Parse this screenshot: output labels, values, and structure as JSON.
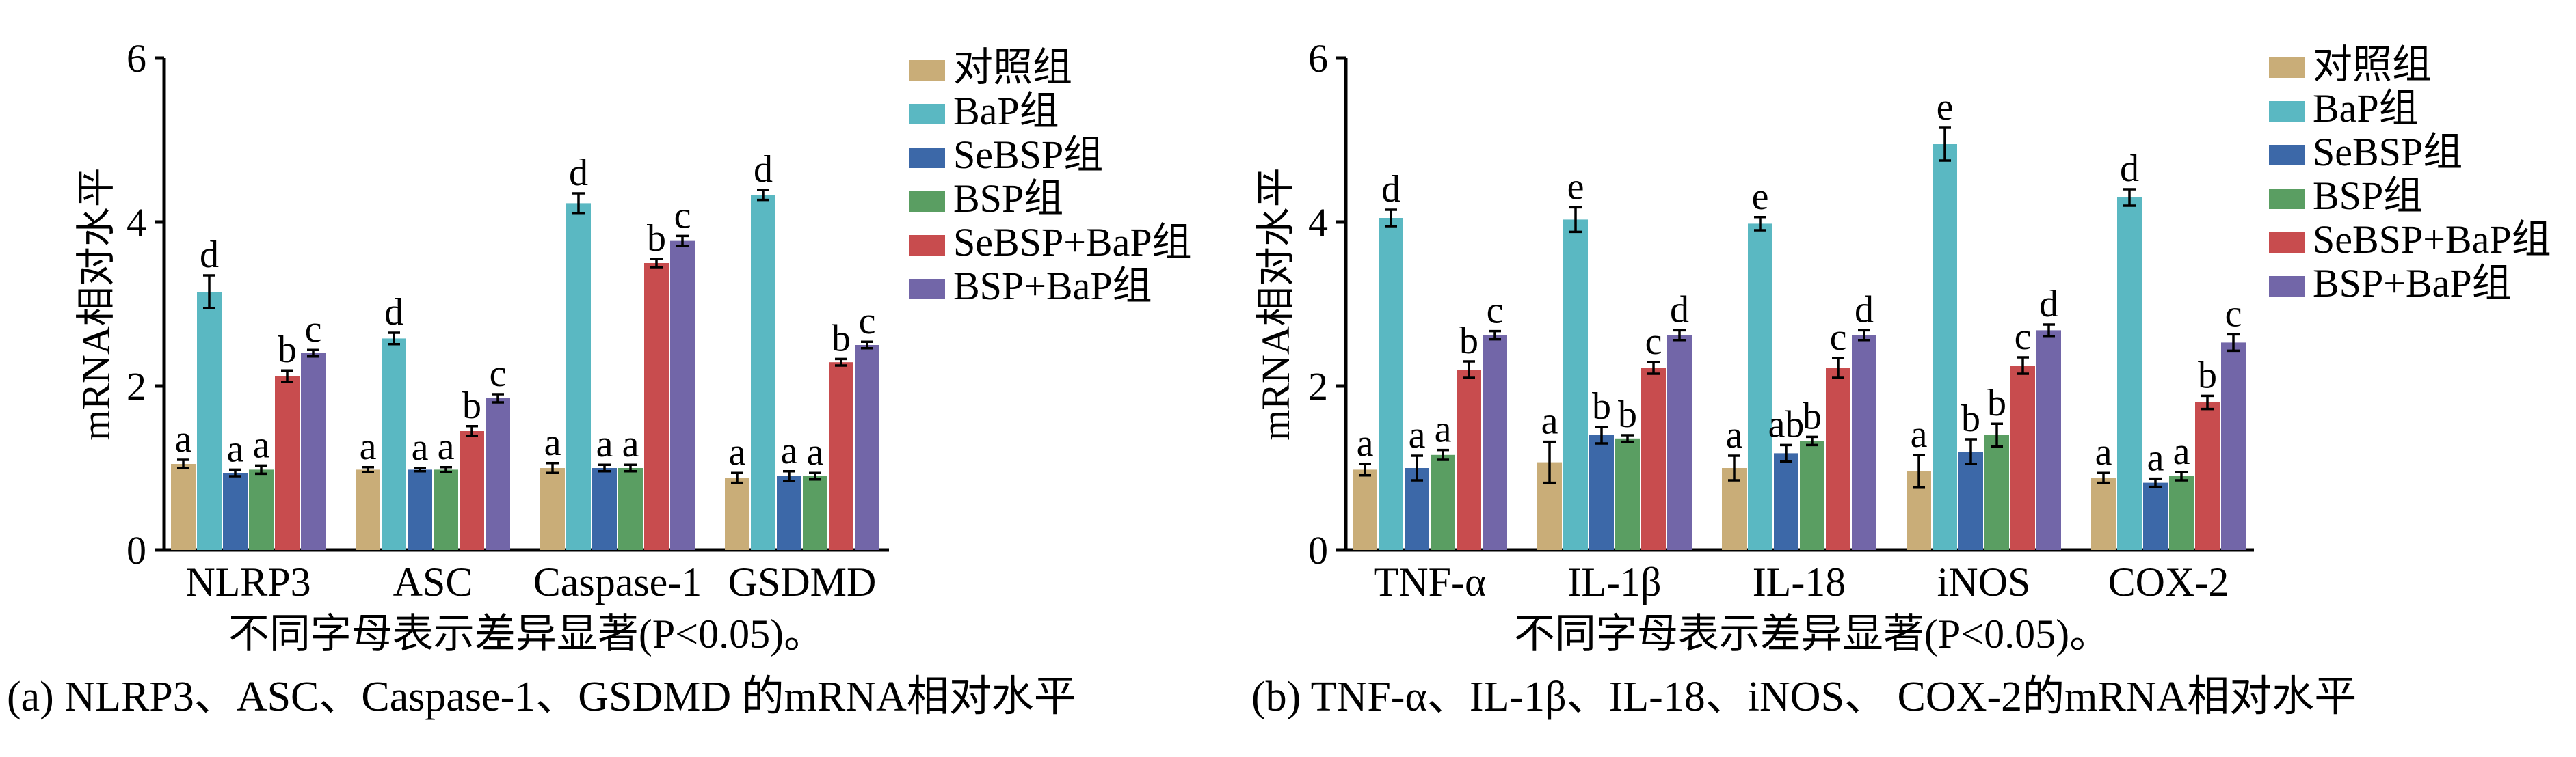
{
  "colors": {
    "对照组": "#c9ad78",
    "BaP组": "#5ab8c2",
    "SeBSP组": "#3c68a8",
    "BSP组": "#5a9e62",
    "SeBSP+BaP组": "#c84c4e",
    "BSP+BaP组": "#7266a8"
  },
  "chart_data": [
    {
      "type": "bar",
      "ylabel": "mRNA相对水平",
      "ylim": [
        0,
        6
      ],
      "yticks": [
        0,
        2,
        4,
        6
      ],
      "note": "不同字母表示差异显著(P<0.05)。",
      "caption": "(a) NLRP3、ASC、Caspase-1、GSDMD 的mRNA相对水平",
      "legend_position": "top-right",
      "categories": [
        "NLRP3",
        "ASC",
        "Caspase-1",
        "GSDMD"
      ],
      "series": [
        {
          "name": "对照组",
          "values": [
            1.05,
            0.98,
            1.0,
            0.88
          ],
          "errors": [
            0.05,
            0.03,
            0.06,
            0.06
          ],
          "labels": [
            "a",
            "a",
            "a",
            "a"
          ]
        },
        {
          "name": "BaP组",
          "values": [
            3.15,
            2.58,
            4.23,
            4.33
          ],
          "errors": [
            0.2,
            0.07,
            0.12,
            0.06
          ],
          "labels": [
            "d",
            "d",
            "d",
            "d"
          ]
        },
        {
          "name": "SeBSP组",
          "values": [
            0.94,
            0.98,
            1.0,
            0.9
          ],
          "errors": [
            0.04,
            0.02,
            0.04,
            0.06
          ],
          "labels": [
            "a",
            "a",
            "a",
            "a"
          ]
        },
        {
          "name": "BSP组",
          "values": [
            0.98,
            0.98,
            1.0,
            0.9
          ],
          "errors": [
            0.05,
            0.03,
            0.04,
            0.04
          ],
          "labels": [
            "a",
            "a",
            "a",
            "a"
          ]
        },
        {
          "name": "SeBSP+BaP组",
          "values": [
            2.12,
            1.45,
            3.5,
            2.29
          ],
          "errors": [
            0.07,
            0.06,
            0.05,
            0.04
          ],
          "labels": [
            "b",
            "b",
            "b",
            "b"
          ]
        },
        {
          "name": "BSP+BaP组",
          "values": [
            2.4,
            1.85,
            3.77,
            2.5
          ],
          "errors": [
            0.04,
            0.05,
            0.06,
            0.04
          ],
          "labels": [
            "c",
            "c",
            "c",
            "c"
          ]
        }
      ]
    },
    {
      "type": "bar",
      "ylabel": "mRNA相对水平",
      "ylim": [
        0,
        6
      ],
      "yticks": [
        0,
        2,
        4,
        6
      ],
      "note": "不同字母表示差异显著(P<0.05)。",
      "caption": "(b)  TNF-α、IL-1β、IL-18、iNOS、 COX-2的mRNA相对水平",
      "legend_position": "top-right",
      "categories": [
        "TNF-α",
        "IL-1β",
        "IL-18",
        "iNOS",
        "COX-2"
      ],
      "series": [
        {
          "name": "对照组",
          "values": [
            0.98,
            1.07,
            1.0,
            0.96,
            0.88
          ],
          "errors": [
            0.07,
            0.25,
            0.15,
            0.2,
            0.06
          ],
          "labels": [
            "a",
            "a",
            "a",
            "a",
            "a"
          ]
        },
        {
          "name": "BaP组",
          "values": [
            4.05,
            4.03,
            3.98,
            4.95,
            4.3
          ],
          "errors": [
            0.1,
            0.15,
            0.08,
            0.2,
            0.1
          ],
          "labels": [
            "d",
            "e",
            "e",
            "e",
            "d"
          ]
        },
        {
          "name": "SeBSP组",
          "values": [
            1.0,
            1.4,
            1.18,
            1.2,
            0.82
          ],
          "errors": [
            0.15,
            0.1,
            0.1,
            0.15,
            0.05
          ],
          "labels": [
            "a",
            "b",
            "ab",
            "b",
            "a"
          ]
        },
        {
          "name": "BSP组",
          "values": [
            1.16,
            1.36,
            1.33,
            1.4,
            0.9
          ],
          "errors": [
            0.06,
            0.04,
            0.05,
            0.14,
            0.05
          ],
          "labels": [
            "a",
            "b",
            "b",
            "b",
            "a"
          ]
        },
        {
          "name": "SeBSP+BaP组",
          "values": [
            2.2,
            2.22,
            2.22,
            2.25,
            1.8
          ],
          "errors": [
            0.1,
            0.07,
            0.12,
            0.1,
            0.08
          ],
          "labels": [
            "b",
            "c",
            "c",
            "c",
            "b"
          ]
        },
        {
          "name": "BSP+BaP组",
          "values": [
            2.62,
            2.62,
            2.62,
            2.68,
            2.53
          ],
          "errors": [
            0.05,
            0.06,
            0.06,
            0.07,
            0.1
          ],
          "labels": [
            "c",
            "d",
            "d",
            "d",
            "c"
          ]
        }
      ]
    }
  ]
}
